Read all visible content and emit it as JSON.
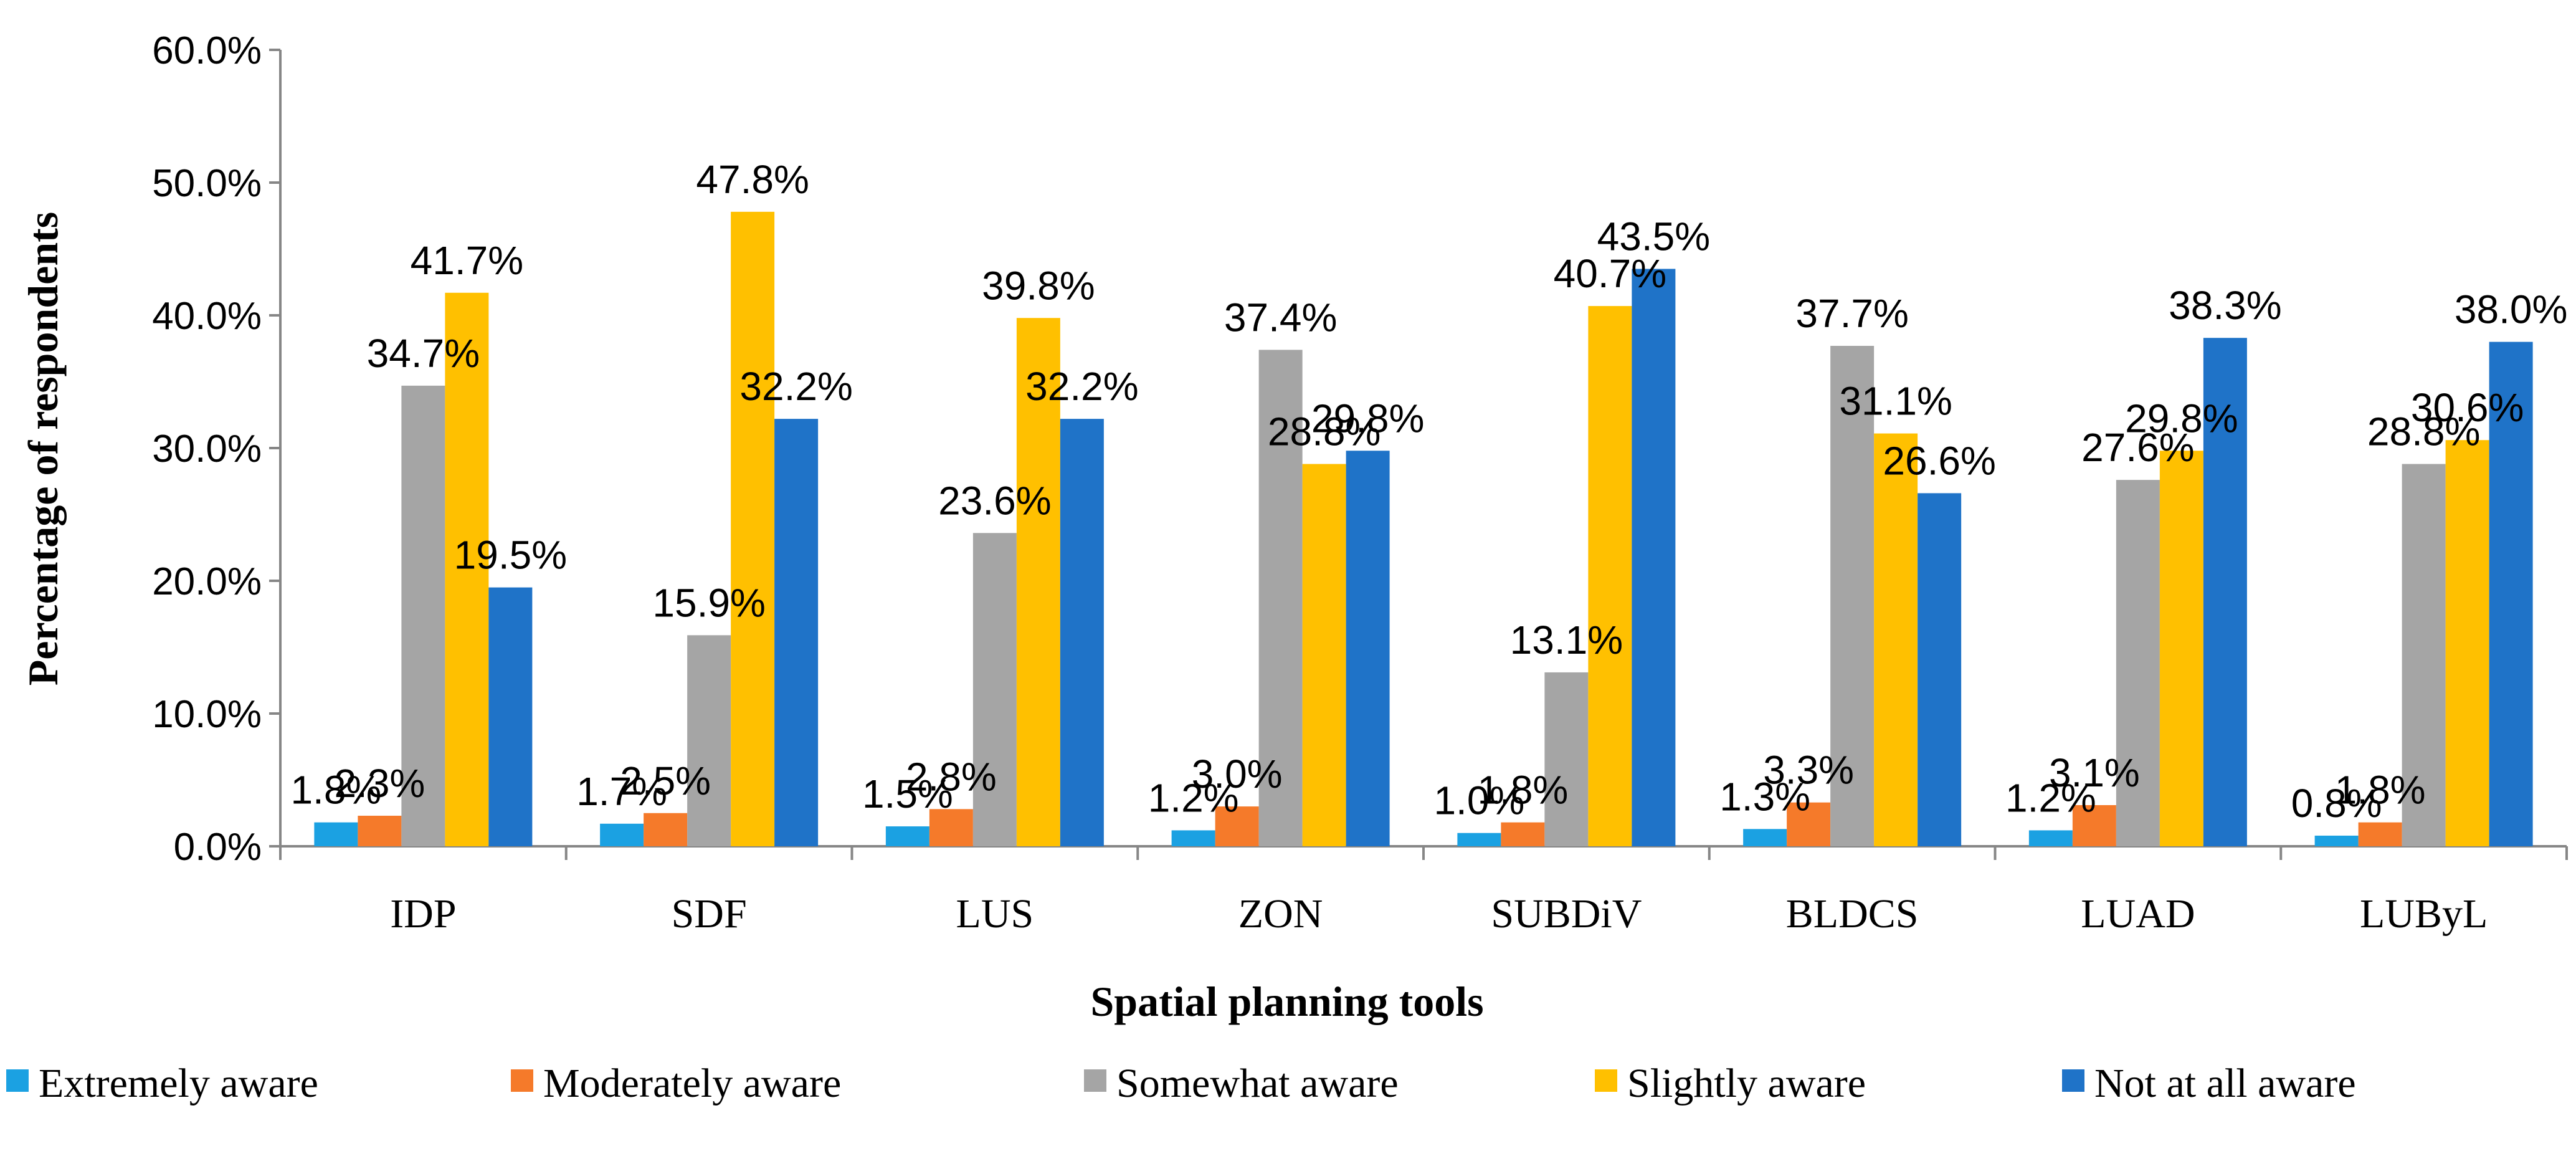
{
  "chart_data": {
    "type": "bar",
    "title": "",
    "xlabel": "Spatial planning tools",
    "ylabel": "Percentage of respondents",
    "ylim": [
      0,
      60
    ],
    "yticks": [
      "0.0%",
      "10.0%",
      "20.0%",
      "30.0%",
      "40.0%",
      "50.0%",
      "60.0%"
    ],
    "categories": [
      "IDP",
      "SDF",
      "LUS",
      "ZON",
      "SUBDiV",
      "BLDCS",
      "LUAD",
      "LUByL"
    ],
    "series": [
      {
        "name": "Extremely aware",
        "color": "#1BA1E2",
        "values": [
          1.8,
          1.7,
          1.5,
          1.2,
          1.0,
          1.3,
          1.2,
          0.8
        ],
        "labels": [
          "1.8%",
          "1.7%",
          "1.5%",
          "1.2%",
          "1.0%",
          "1.3%",
          "1.2%",
          "0.8%"
        ]
      },
      {
        "name": "Moderately aware",
        "color": "#F57A2A",
        "values": [
          2.3,
          2.5,
          2.8,
          3.0,
          1.8,
          3.3,
          3.1,
          1.8
        ],
        "labels": [
          "2.3%",
          "2.5%",
          "2.8%",
          "3.0%",
          "1.8%",
          "3.3%",
          "3.1%",
          "1.8%"
        ]
      },
      {
        "name": "Somewhat aware",
        "color": "#A5A5A5",
        "values": [
          34.7,
          15.9,
          23.6,
          37.4,
          13.1,
          37.7,
          27.6,
          28.8
        ],
        "labels": [
          "34.7%",
          "15.9%",
          "23.6%",
          "37.4%",
          "13.1%",
          "37.7%",
          "27.6%",
          "28.8%"
        ]
      },
      {
        "name": "Slightly aware",
        "color": "#FFC000",
        "values": [
          41.7,
          47.8,
          39.8,
          28.8,
          40.7,
          31.1,
          29.8,
          30.6
        ],
        "labels": [
          "41.7%",
          "47.8%",
          "39.8%",
          "28.8%",
          "40.7%",
          "31.1%",
          "29.8%",
          "30.6%"
        ]
      },
      {
        "name": "Not at all aware",
        "color": "#1F73C8",
        "values": [
          19.5,
          32.2,
          32.2,
          29.8,
          43.5,
          26.6,
          38.3,
          38.0
        ],
        "labels": [
          "19.5%",
          "32.2%",
          "32.2%",
          "29.8%",
          "43.5%",
          "26.6%",
          "38.3%",
          "38.0%"
        ]
      }
    ],
    "legend_position": "bottom",
    "grid": false
  }
}
